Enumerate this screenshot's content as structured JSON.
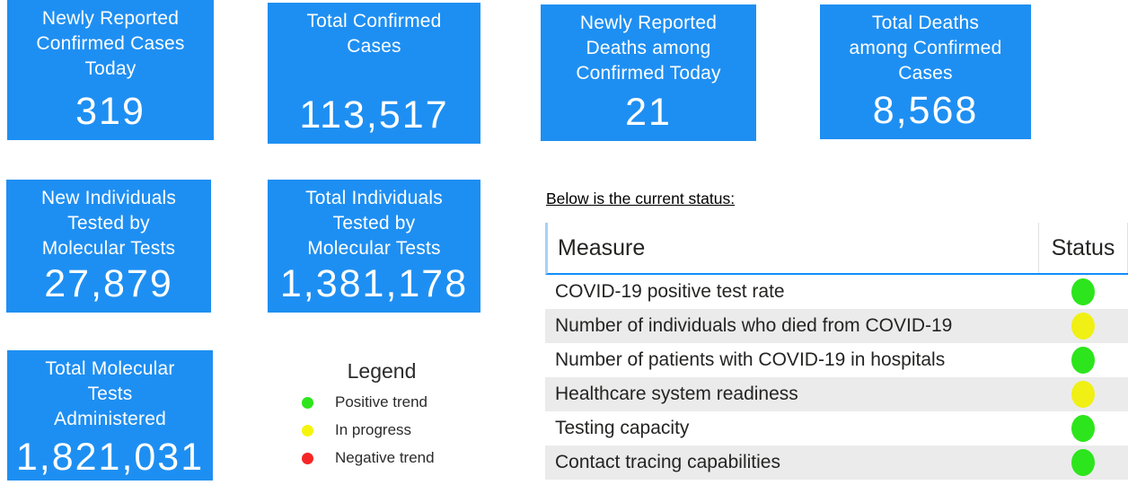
{
  "cards": [
    {
      "title": "Newly Reported Confirmed Cases Today",
      "value": "319"
    },
    {
      "title": "Total Confirmed Cases",
      "value": "113,517"
    },
    {
      "title": "Newly Reported Deaths among Confirmed Today",
      "value": "21"
    },
    {
      "title": "Total Deaths among Confirmed Cases",
      "value": "8,568"
    },
    {
      "title": "New Individuals Tested by Molecular Tests",
      "value": "27,879"
    },
    {
      "title": "Total Individuals Tested by Molecular Tests",
      "value": "1,381,178"
    },
    {
      "title": "Total Molecular Tests Administered",
      "value": "1,821,031"
    }
  ],
  "legend": {
    "title": "Legend",
    "items": [
      {
        "label": "Positive trend",
        "color": "#2de51c"
      },
      {
        "label": "In progress",
        "color": "#f5f50c"
      },
      {
        "label": "Negative trend",
        "color": "#f52525"
      }
    ]
  },
  "status": {
    "heading": "Below is the current status:",
    "columns": {
      "measure": "Measure",
      "status": "Status"
    },
    "rows": [
      {
        "measure": "COVID-19 positive test rate",
        "status": "green",
        "color": "#2de51c"
      },
      {
        "measure": "Number of individuals who died from COVID-19",
        "status": "yellow",
        "color": "#f0f014"
      },
      {
        "measure": "Number of patients with COVID-19 in hospitals",
        "status": "green",
        "color": "#2de51c"
      },
      {
        "measure": "Healthcare system readiness",
        "status": "yellow",
        "color": "#f0f014"
      },
      {
        "measure": "Testing capacity",
        "status": "green",
        "color": "#2de51c"
      },
      {
        "measure": "Contact tracing capabilities",
        "status": "green",
        "color": "#2de51c"
      }
    ]
  },
  "colors": {
    "card_background": "#1e8ff2",
    "header_underline": "#118dff",
    "alt_row_background": "#ebebeb"
  }
}
